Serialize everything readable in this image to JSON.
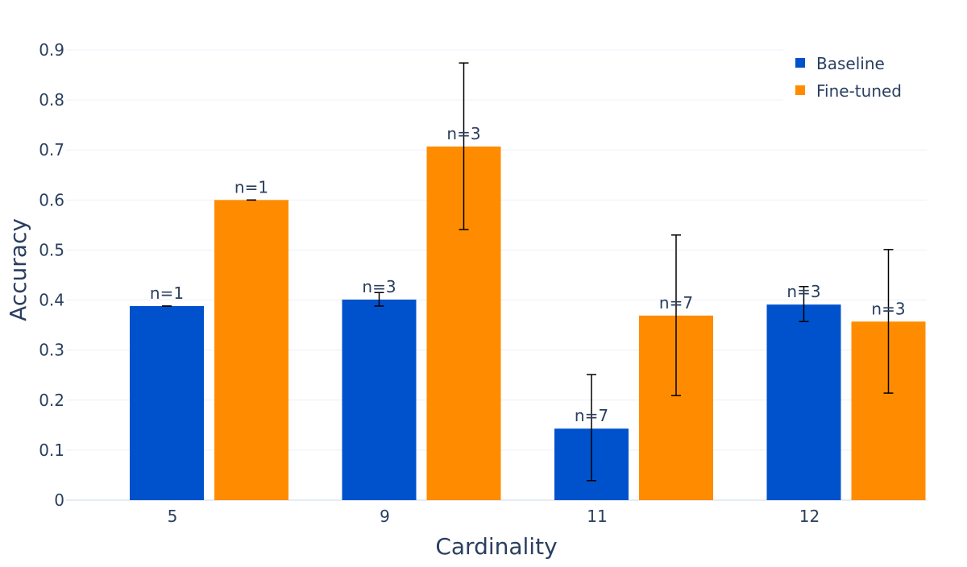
{
  "chart_data": {
    "type": "bar",
    "title": "",
    "xlabel": "Cardinality",
    "ylabel": "Accuracy",
    "categories": [
      "5",
      "9",
      "11",
      "12"
    ],
    "ylim": [
      0,
      0.95
    ],
    "yticks": [
      "0",
      "0.1",
      "0.2",
      "0.3",
      "0.4",
      "0.5",
      "0.6",
      "0.7",
      "0.8",
      "0.9"
    ],
    "grid": true,
    "legend_position": "top-right",
    "series": [
      {
        "name": "Baseline",
        "color": "#0052cc",
        "values": [
          0.388,
          0.401,
          0.143,
          0.391
        ],
        "error_low": [
          0.388,
          0.388,
          0.039,
          0.357
        ],
        "error_high": [
          0.388,
          0.415,
          0.251,
          0.427
        ],
        "labels": [
          "n=1",
          "n=3",
          "n=7",
          "n=3"
        ]
      },
      {
        "name": "Fine-tuned",
        "color": "#ff8c00",
        "values": [
          0.6,
          0.707,
          0.369,
          0.357
        ],
        "error_low": [
          0.6,
          0.541,
          0.209,
          0.214
        ],
        "error_high": [
          0.6,
          0.874,
          0.53,
          0.501
        ],
        "labels": [
          "n=1",
          "n=3",
          "n=7",
          "n=3"
        ]
      }
    ]
  }
}
